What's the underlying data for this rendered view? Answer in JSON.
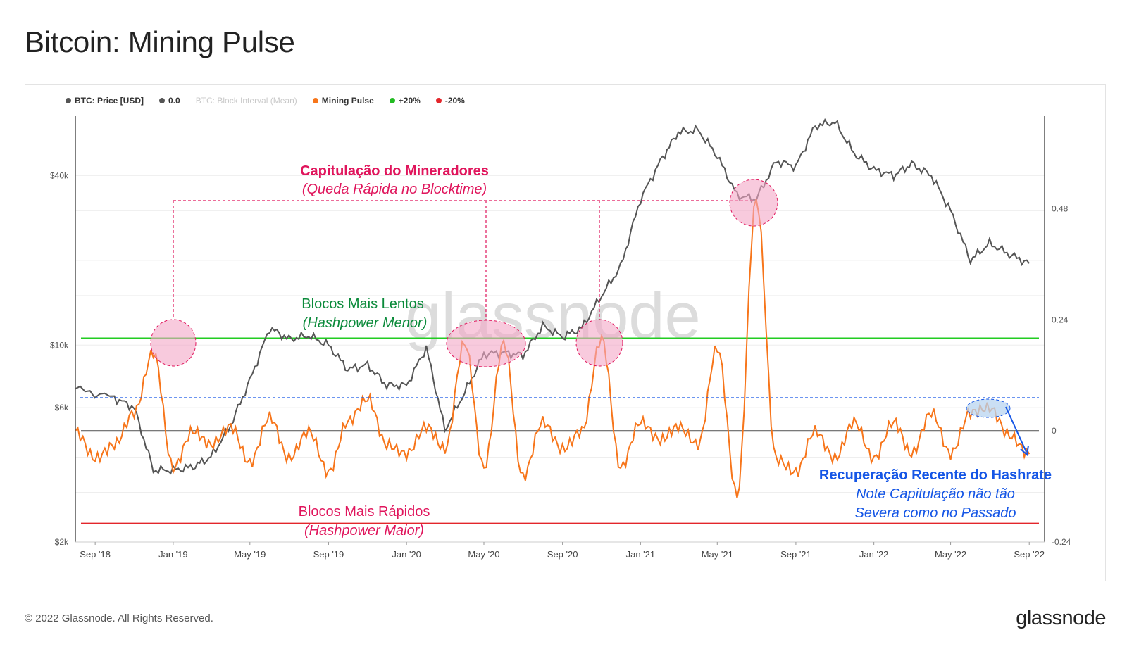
{
  "title": "Bitcoin: Mining Pulse",
  "legend": [
    {
      "label": "BTC: Price [USD]",
      "color": "#555555",
      "muted": false
    },
    {
      "label": "0.0",
      "color": "#555555",
      "muted": false
    },
    {
      "label": "BTC: Block Interval (Mean)",
      "color": "#cccccc",
      "muted": true
    },
    {
      "label": "Mining Pulse",
      "color": "#f7751a",
      "muted": false
    },
    {
      "label": "+20%",
      "color": "#22bb22",
      "muted": false
    },
    {
      "label": "-20%",
      "color": "#e3262b",
      "muted": false
    }
  ],
  "watermark": "glassnode",
  "footer": {
    "copyright": "© 2022 Glassnode. All Rights Reserved.",
    "logo": "glassnode"
  },
  "colors": {
    "price": "#555555",
    "pulse": "#f7751a",
    "plus20": "#22cc22",
    "minus20": "#e3262b",
    "zero": "#666666",
    "highlight_pink": "#f4a6c7",
    "highlight_blue": "#b8d4f0",
    "capitulation_text": "#e0155c",
    "slow_text": "#0a8a3a",
    "fast_text": "#e0155c",
    "recovery_text": "#1556e6"
  },
  "annotations": {
    "capitulation_title": "Capitulação do Mineradores",
    "capitulation_sub": "(Queda Rápida no Blocktime)",
    "slow_title": "Blocos Mais Lentos",
    "slow_sub": "(Hashpower Menor)",
    "fast_title": "Blocos Mais Rápidos",
    "fast_sub": "(Hashpower Maior)",
    "recovery_title": "Recuperação Recente do Hashrate",
    "recovery_line1": "Note Capitulação não tão",
    "recovery_line2": "Severa como no Passado"
  },
  "chart_data": {
    "type": "line",
    "x_ticks": [
      "Sep '18",
      "Jan '19",
      "May '19",
      "Sep '19",
      "Jan '20",
      "May '20",
      "Sep '20",
      "Jan '21",
      "May '21",
      "Sep '21",
      "Jan '22",
      "May '22",
      "Sep '22"
    ],
    "y_left": {
      "ticks": [
        "$40k",
        "$10k",
        "$6k",
        "$2k"
      ],
      "scale": "log",
      "range": [
        2000,
        65000
      ]
    },
    "y_right": {
      "ticks": [
        "0.48",
        "0.24",
        "0",
        "-0.24"
      ],
      "range": [
        -0.24,
        0.68
      ]
    },
    "reference_lines": [
      {
        "name": "+20%",
        "y_right": 0.2
      },
      {
        "name": "-20%",
        "y_right": -0.2
      },
      {
        "name": "0.0",
        "y_right": 0
      }
    ],
    "series": [
      {
        "name": "BTC: Price [USD]",
        "axis": "left",
        "points": [
          [
            "2018-08",
            7000
          ],
          [
            "2018-10",
            6500
          ],
          [
            "2018-11",
            6000
          ],
          [
            "2018-12",
            3600
          ],
          [
            "2019-01",
            3600
          ],
          [
            "2019-02",
            3700
          ],
          [
            "2019-03",
            4000
          ],
          [
            "2019-04",
            5200
          ],
          [
            "2019-05",
            7500
          ],
          [
            "2019-06",
            11500
          ],
          [
            "2019-07",
            10500
          ],
          [
            "2019-08",
            10800
          ],
          [
            "2019-09",
            10000
          ],
          [
            "2019-10",
            8200
          ],
          [
            "2019-11",
            8500
          ],
          [
            "2019-12",
            7200
          ],
          [
            "2020-01",
            7200
          ],
          [
            "2020-02",
            9800
          ],
          [
            "2020-03",
            5000
          ],
          [
            "2020-04",
            6800
          ],
          [
            "2020-05",
            9300
          ],
          [
            "2020-06",
            9400
          ],
          [
            "2020-07",
            9200
          ],
          [
            "2020-08",
            11700
          ],
          [
            "2020-09",
            10700
          ],
          [
            "2020-10",
            11500
          ],
          [
            "2020-11",
            15000
          ],
          [
            "2020-12",
            19000
          ],
          [
            "2021-01",
            33000
          ],
          [
            "2021-02",
            45000
          ],
          [
            "2021-03",
            57000
          ],
          [
            "2021-04",
            58000
          ],
          [
            "2021-05",
            47000
          ],
          [
            "2021-06",
            34000
          ],
          [
            "2021-07",
            33000
          ],
          [
            "2021-08",
            45000
          ],
          [
            "2021-09",
            43000
          ],
          [
            "2021-10",
            60000
          ],
          [
            "2021-11",
            62000
          ],
          [
            "2021-12",
            48000
          ],
          [
            "2022-01",
            42000
          ],
          [
            "2022-02",
            40000
          ],
          [
            "2022-03",
            44000
          ],
          [
            "2022-04",
            40000
          ],
          [
            "2022-05",
            30000
          ],
          [
            "2022-06",
            20000
          ],
          [
            "2022-07",
            23000
          ],
          [
            "2022-08",
            21000
          ],
          [
            "2022-09",
            19500
          ]
        ]
      },
      {
        "name": "Mining Pulse",
        "axis": "right",
        "points": [
          [
            "2018-08",
            0.0
          ],
          [
            "2018-09",
            -0.06
          ],
          [
            "2018-10",
            -0.03
          ],
          [
            "2018-11",
            0.04
          ],
          [
            "2018-12",
            0.17
          ],
          [
            "2019-01",
            -0.08
          ],
          [
            "2019-02",
            0.0
          ],
          [
            "2019-03",
            -0.03
          ],
          [
            "2019-04",
            0.01
          ],
          [
            "2019-05",
            -0.07
          ],
          [
            "2019-06",
            0.03
          ],
          [
            "2019-07",
            -0.06
          ],
          [
            "2019-08",
            0.0
          ],
          [
            "2019-09",
            -0.09
          ],
          [
            "2019-10",
            0.02
          ],
          [
            "2019-11",
            0.07
          ],
          [
            "2019-12",
            -0.03
          ],
          [
            "2020-01",
            -0.05
          ],
          [
            "2020-02",
            0.01
          ],
          [
            "2020-03",
            -0.04
          ],
          [
            "2020-04",
            0.19
          ],
          [
            "2020-05",
            -0.08
          ],
          [
            "2020-06",
            0.19
          ],
          [
            "2020-07",
            -0.1
          ],
          [
            "2020-08",
            0.02
          ],
          [
            "2020-09",
            -0.04
          ],
          [
            "2020-10",
            0.0
          ],
          [
            "2020-11",
            0.2
          ],
          [
            "2020-12",
            -0.08
          ],
          [
            "2021-01",
            0.02
          ],
          [
            "2021-02",
            -0.02
          ],
          [
            "2021-03",
            0.01
          ],
          [
            "2021-04",
            -0.03
          ],
          [
            "2021-05",
            0.18
          ],
          [
            "2021-06",
            -0.14
          ],
          [
            "2021-07",
            0.5
          ],
          [
            "2021-08",
            -0.06
          ],
          [
            "2021-09",
            -0.09
          ],
          [
            "2021-10",
            0.0
          ],
          [
            "2021-11",
            -0.06
          ],
          [
            "2021-12",
            0.02
          ],
          [
            "2022-01",
            -0.06
          ],
          [
            "2022-02",
            0.02
          ],
          [
            "2022-03",
            -0.05
          ],
          [
            "2022-04",
            0.04
          ],
          [
            "2022-05",
            -0.05
          ],
          [
            "2022-06",
            0.04
          ],
          [
            "2022-07",
            0.05
          ],
          [
            "2022-08",
            -0.01
          ],
          [
            "2022-09",
            -0.05
          ]
        ]
      }
    ]
  }
}
